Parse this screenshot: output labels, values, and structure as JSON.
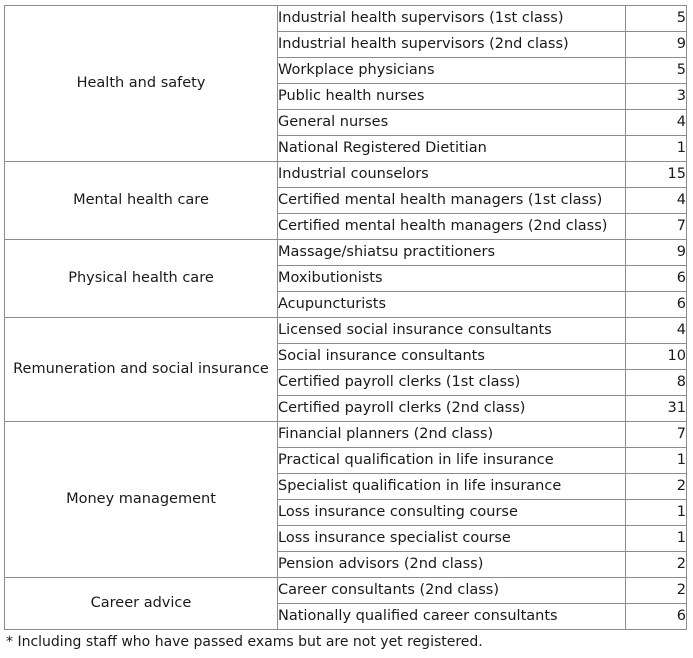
{
  "table": {
    "groups": [
      {
        "category": "Health and safety",
        "rows": [
          {
            "qualification": "Industrial health supervisors (1st class)",
            "count": "5"
          },
          {
            "qualification": "Industrial health supervisors (2nd class)",
            "count": "9"
          },
          {
            "qualification": "Workplace physicians",
            "count": "5"
          },
          {
            "qualification": "Public health nurses",
            "count": "3"
          },
          {
            "qualification": "General nurses",
            "count": "4"
          },
          {
            "qualification": "National Registered Dietitian",
            "count": "1"
          }
        ]
      },
      {
        "category": "Mental health care",
        "rows": [
          {
            "qualification": "Industrial counselors",
            "count": "15"
          },
          {
            "qualification": "Certified mental health managers (1st class)",
            "count": "4"
          },
          {
            "qualification": "Certified mental health managers (2nd class)",
            "count": "7"
          }
        ]
      },
      {
        "category": "Physical health care",
        "rows": [
          {
            "qualification": "Massage/shiatsu practitioners",
            "count": "9"
          },
          {
            "qualification": "Moxibutionists",
            "count": "6"
          },
          {
            "qualification": "Acupuncturists",
            "count": "6"
          }
        ]
      },
      {
        "category": "Remuneration and social insurance",
        "rows": [
          {
            "qualification": "Licensed social insurance consultants",
            "count": "4"
          },
          {
            "qualification": "Social insurance consultants",
            "count": "10"
          },
          {
            "qualification": "Certified payroll clerks (1st class)",
            "count": "8"
          },
          {
            "qualification": "Certified payroll clerks (2nd class)",
            "count": "31"
          }
        ]
      },
      {
        "category": "Money management",
        "rows": [
          {
            "qualification": "Financial planners (2nd class)",
            "count": "7"
          },
          {
            "qualification": "Practical qualification in life insurance",
            "count": "1"
          },
          {
            "qualification": "Specialist qualification in life insurance",
            "count": "2"
          },
          {
            "qualification": "Loss insurance consulting course",
            "count": "1"
          },
          {
            "qualification": "Loss insurance specialist course",
            "count": "1"
          },
          {
            "qualification": "Pension advisors (2nd class)",
            "count": "2"
          }
        ]
      },
      {
        "category": "Career advice",
        "rows": [
          {
            "qualification": "Career consultants (2nd class)",
            "count": "2"
          },
          {
            "qualification": "Nationally qualified career consultants",
            "count": "6"
          }
        ]
      }
    ]
  },
  "footnote": "* Including staff who have passed exams but are not yet registered."
}
